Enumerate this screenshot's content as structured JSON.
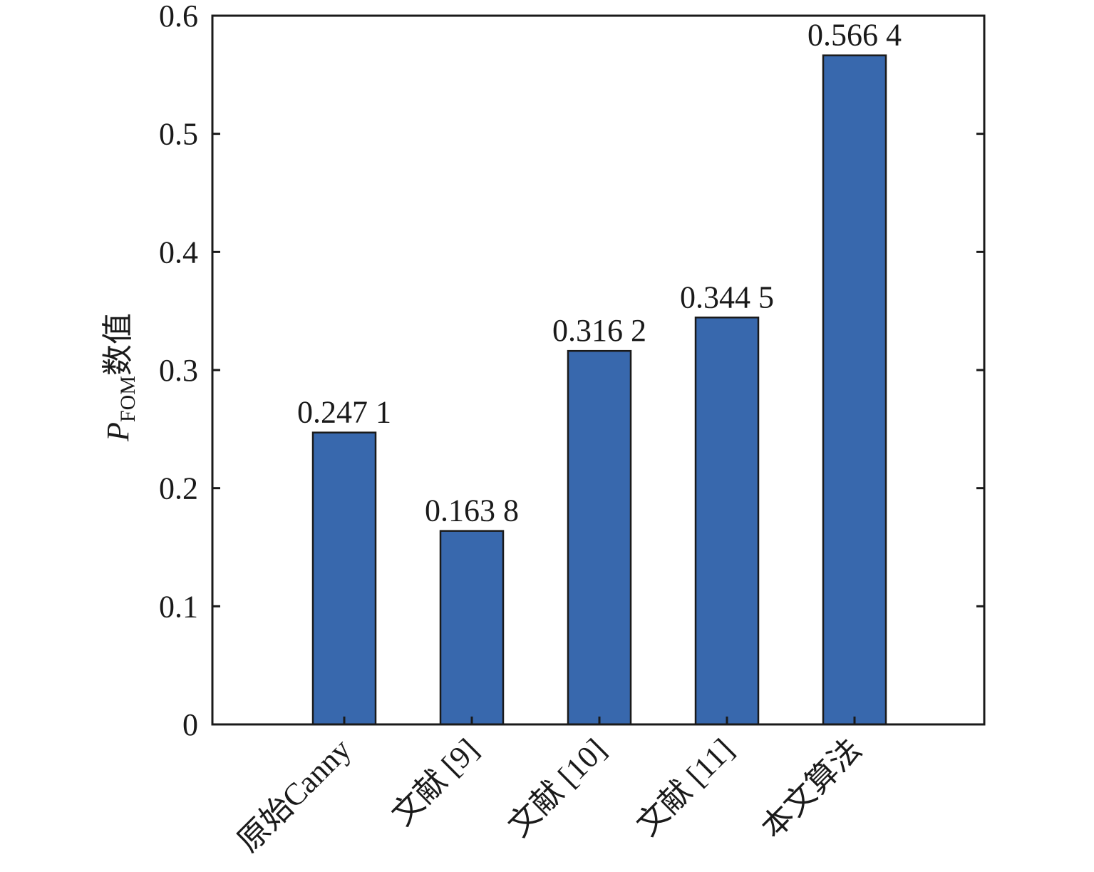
{
  "chart_data": {
    "type": "bar",
    "categories": [
      "原始Canny",
      "文献 [9]",
      "文献 [10]",
      "文献 [11]",
      "本文算法"
    ],
    "values": [
      0.2471,
      0.1638,
      0.3162,
      0.3445,
      0.5664
    ],
    "value_labels": [
      "0.247 1",
      "0.163 8",
      "0.316 2",
      "0.344 5",
      "0.566 4"
    ],
    "ylabel": {
      "main": "P",
      "subscript": "FOM",
      "suffix": "数值"
    },
    "ylim": [
      0,
      0.6
    ],
    "yticks": [
      "0",
      "0.1",
      "0.2",
      "0.3",
      "0.4",
      "0.5",
      "0.6"
    ],
    "bar_color": "#3868ad",
    "grid": false,
    "legend": "none"
  }
}
